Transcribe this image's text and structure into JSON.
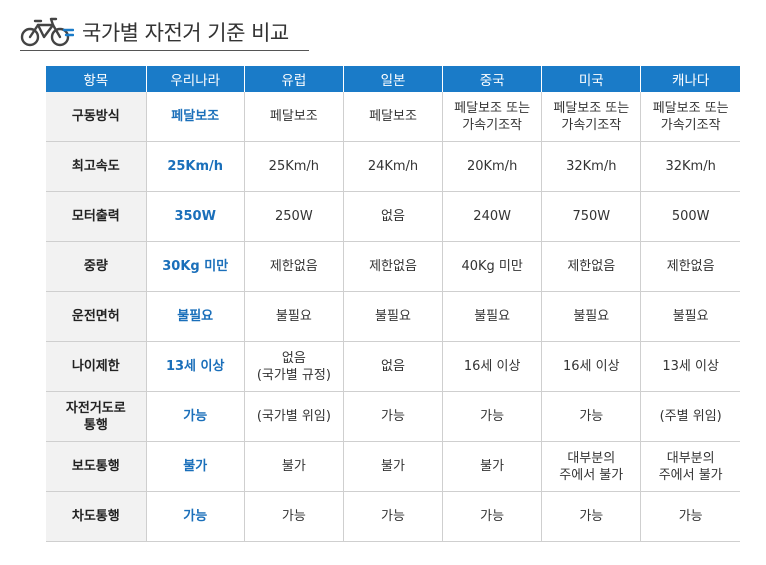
{
  "page": {
    "title": "국가별 자전거 기준 비교",
    "icon": "bicycle-icon",
    "colors": {
      "header_bg": "#1a7bc8",
      "highlight_text": "#1a6fba",
      "label_bg": "#f2f2f2"
    }
  },
  "table": {
    "headers": [
      "항목",
      "우리나라",
      "유럽",
      "일본",
      "중국",
      "미국",
      "캐나다"
    ],
    "rows": [
      {
        "label": "구동방식",
        "values": [
          "페달보조",
          "페달보조",
          "페달보조",
          "페달보조 또는\n가속기조작",
          "페달보조 또는\n가속기조작",
          "페달보조 또는\n가속기조작"
        ]
      },
      {
        "label": "최고속도",
        "values": [
          "25Km/h",
          "25Km/h",
          "24Km/h",
          "20Km/h",
          "32Km/h",
          "32Km/h"
        ]
      },
      {
        "label": "모터출력",
        "values": [
          "350W",
          "250W",
          "없음",
          "240W",
          "750W",
          "500W"
        ]
      },
      {
        "label": "중량",
        "values": [
          "30Kg 미만",
          "제한없음",
          "제한없음",
          "40Kg 미만",
          "제한없음",
          "제한없음"
        ]
      },
      {
        "label": "운전면허",
        "values": [
          "불필요",
          "불필요",
          "불필요",
          "불필요",
          "불필요",
          "불필요"
        ]
      },
      {
        "label": "나이제한",
        "values": [
          "13세 이상",
          "없음\n(국가별 규정)",
          "없음",
          "16세 이상",
          "16세 이상",
          "13세 이상"
        ]
      },
      {
        "label": "자전거도로\n통행",
        "values": [
          "가능",
          "(국가별 위임)",
          "가능",
          "가능",
          "가능",
          "(주별 위임)"
        ]
      },
      {
        "label": "보도통행",
        "values": [
          "불가",
          "불가",
          "불가",
          "불가",
          "대부분의\n주에서 불가",
          "대부분의\n주에서 불가"
        ]
      },
      {
        "label": "차도통행",
        "values": [
          "가능",
          "가능",
          "가능",
          "가능",
          "가능",
          "가능"
        ]
      }
    ]
  }
}
